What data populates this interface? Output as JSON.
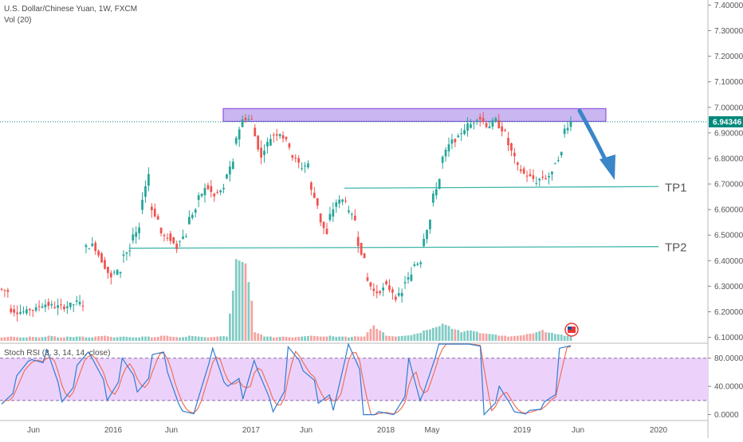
{
  "header": {
    "symbol_line": "U.S. Dollar/Chinese Yuan, 1W, FXCM",
    "volume_label": "Vol (20)",
    "stoch_label": "Stoch RSI (3, 3, 14, 14, close)"
  },
  "colors": {
    "up": "#26a69a",
    "down": "#ef5350",
    "volume_up": "#80cbc4",
    "volume_down": "#f4a3a0",
    "resistance_fill": "#c8b3f0",
    "resistance_stroke": "#8a4dde",
    "trend_line": "#3fb6a8",
    "arrow": "#3a86c8",
    "stoch_band": "#ecd2fb",
    "stoch_k": "#2f7dd1",
    "stoch_d": "#f0705a",
    "price_badge": "#00897b"
  },
  "chart_data": [
    {
      "type": "candlestick",
      "pair": "USD/CNY",
      "timeframe": "1W",
      "x_tick_labels": [
        "Jun",
        "2016",
        "Jun",
        "2017",
        "Jun",
        "2018",
        "May",
        "2019",
        "Jun",
        "2020"
      ],
      "y_tick_labels": [
        "7.40000",
        "7.30000",
        "7.20000",
        "7.10000",
        "7.00000",
        "6.90000",
        "6.80000",
        "6.70000",
        "6.60000",
        "6.50000",
        "6.40000",
        "6.30000",
        "6.20000",
        "6.10000"
      ],
      "ylim": [
        6.08,
        7.42
      ],
      "last_price": "6.94346",
      "annotations": {
        "resistance_zone": {
          "low": 6.945,
          "high": 6.995
        },
        "tp1": {
          "label": "TP1",
          "value": 6.69
        },
        "tp2": {
          "label": "TP2",
          "value": 6.455
        }
      },
      "price_path": [
        [
          6.29,
          6.28
        ],
        [
          6.21,
          6.2
        ],
        [
          6.2,
          6.2
        ],
        [
          6.21,
          6.21
        ],
        [
          6.22,
          6.23
        ],
        [
          6.23,
          6.22
        ],
        [
          6.22,
          6.22
        ],
        [
          6.22,
          6.23
        ],
        [
          6.24,
          6.23
        ],
        [
          6.45,
          6.46
        ],
        [
          6.47,
          6.4
        ],
        [
          6.4,
          6.33
        ],
        [
          6.35,
          6.36
        ],
        [
          6.42,
          6.44
        ],
        [
          6.48,
          6.52
        ],
        [
          6.6,
          6.74
        ],
        [
          6.62,
          6.56
        ],
        [
          6.52,
          6.48
        ],
        [
          6.5,
          6.45
        ],
        [
          6.48,
          6.5
        ],
        [
          6.55,
          6.6
        ],
        [
          6.63,
          6.68
        ],
        [
          6.7,
          6.65
        ],
        [
          6.66,
          6.68
        ],
        [
          6.72,
          6.78
        ],
        [
          6.85,
          6.95
        ],
        [
          6.96,
          6.95
        ],
        [
          6.93,
          6.8
        ],
        [
          6.82,
          6.88
        ],
        [
          6.89,
          6.9
        ],
        [
          6.9,
          6.85
        ],
        [
          6.82,
          6.78
        ],
        [
          6.76,
          6.78
        ],
        [
          6.7,
          6.62
        ],
        [
          6.58,
          6.5
        ],
        [
          6.55,
          6.63
        ],
        [
          6.63,
          6.64
        ],
        [
          6.6,
          6.56
        ],
        [
          6.5,
          6.4
        ],
        [
          6.34,
          6.28
        ],
        [
          6.27,
          6.29
        ],
        [
          6.31,
          6.28
        ],
        [
          6.25,
          6.27
        ],
        [
          6.31,
          6.34
        ],
        [
          6.38,
          6.4
        ],
        [
          6.46,
          6.56
        ],
        [
          6.62,
          6.72
        ],
        [
          6.78,
          6.85
        ],
        [
          6.86,
          6.88
        ],
        [
          6.89,
          6.93
        ],
        [
          6.92,
          6.96
        ],
        [
          6.97,
          6.93
        ],
        [
          6.92,
          6.95
        ],
        [
          6.94,
          6.9
        ],
        [
          6.88,
          6.8
        ],
        [
          6.78,
          6.74
        ],
        [
          6.74,
          6.72
        ],
        [
          6.7,
          6.73
        ],
        [
          6.72,
          6.74
        ],
        [
          6.77,
          6.82
        ],
        [
          6.9,
          6.943
        ]
      ],
      "volume_profile": [
        [
          0.04,
          0.05
        ],
        [
          0.05,
          0.04
        ],
        [
          0.04,
          0.04
        ],
        [
          0.05,
          0.04
        ],
        [
          0.04,
          0.05
        ],
        [
          0.06,
          0.05
        ],
        [
          0.04,
          0.04
        ],
        [
          0.05,
          0.04
        ],
        [
          0.05,
          0.05
        ],
        [
          0.04,
          0.04
        ],
        [
          0.05,
          0.06
        ],
        [
          0.06,
          0.04
        ],
        [
          0.04,
          0.05
        ],
        [
          0.05,
          0.04
        ],
        [
          0.04,
          0.04
        ],
        [
          0.05,
          0.05
        ],
        [
          0.04,
          0.05
        ],
        [
          0.06,
          0.06
        ],
        [
          0.05,
          0.04
        ],
        [
          0.04,
          0.05
        ],
        [
          0.06,
          0.05
        ],
        [
          0.05,
          0.04
        ],
        [
          0.04,
          0.05
        ],
        [
          0.05,
          0.06
        ],
        [
          0.05,
          0.85
        ],
        [
          0.95,
          0.9
        ],
        [
          0.9,
          0.25
        ],
        [
          0.1,
          0.06
        ],
        [
          0.05,
          0.05
        ],
        [
          0.04,
          0.05
        ],
        [
          0.05,
          0.04
        ],
        [
          0.04,
          0.05
        ],
        [
          0.05,
          0.06
        ],
        [
          0.06,
          0.05
        ],
        [
          0.05,
          0.05
        ],
        [
          0.06,
          0.04
        ],
        [
          0.05,
          0.05
        ],
        [
          0.04,
          0.06
        ],
        [
          0.05,
          0.05
        ],
        [
          0.1,
          0.22
        ],
        [
          0.14,
          0.08
        ],
        [
          0.06,
          0.05
        ],
        [
          0.05,
          0.06
        ],
        [
          0.06,
          0.07
        ],
        [
          0.08,
          0.1
        ],
        [
          0.12,
          0.14
        ],
        [
          0.15,
          0.18
        ],
        [
          0.2,
          0.16
        ],
        [
          0.14,
          0.12
        ],
        [
          0.1,
          0.13
        ],
        [
          0.12,
          0.1
        ],
        [
          0.09,
          0.08
        ],
        [
          0.08,
          0.07
        ],
        [
          0.06,
          0.06
        ],
        [
          0.05,
          0.06
        ],
        [
          0.06,
          0.07
        ],
        [
          0.08,
          0.09
        ],
        [
          0.1,
          0.14
        ],
        [
          0.1,
          0.09
        ],
        [
          0.08,
          0.07
        ],
        [
          0.06,
          0.06
        ]
      ]
    },
    {
      "type": "line",
      "name": "Stoch RSI",
      "y_tick_labels": [
        "80.0000",
        "40.0000",
        "0.0000"
      ],
      "ylim": [
        -5,
        100
      ],
      "bands": [
        20,
        80
      ],
      "k_path": [
        [
          15,
          35
        ],
        [
          55,
          82
        ],
        [
          78,
          72
        ],
        [
          92,
          30
        ],
        [
          18,
          45
        ],
        [
          70,
          95
        ],
        [
          80,
          40
        ],
        [
          20,
          55
        ],
        [
          80,
          48
        ],
        [
          32,
          58
        ],
        [
          85,
          90
        ],
        [
          60,
          0
        ],
        [
          5,
          0
        ],
        [
          20,
          90
        ],
        [
          94,
          30
        ],
        [
          40,
          55
        ],
        [
          22,
          95
        ],
        [
          62,
          12
        ],
        [
          4,
          42
        ],
        [
          96,
          70
        ],
        [
          62,
          44
        ],
        [
          16,
          32
        ],
        [
          6,
          98
        ],
        [
          100,
          52
        ],
        [
          0,
          0
        ],
        [
          4,
          0
        ],
        [
          0,
          34
        ],
        [
          80,
          0
        ],
        [
          32,
          96
        ],
        [
          100,
          100
        ],
        [
          100,
          100
        ],
        [
          100,
          96
        ],
        [
          0,
          22
        ],
        [
          40,
          6
        ],
        [
          4,
          0
        ],
        [
          6,
          8
        ],
        [
          18,
          32
        ],
        [
          94,
          99
        ]
      ]
    }
  ]
}
